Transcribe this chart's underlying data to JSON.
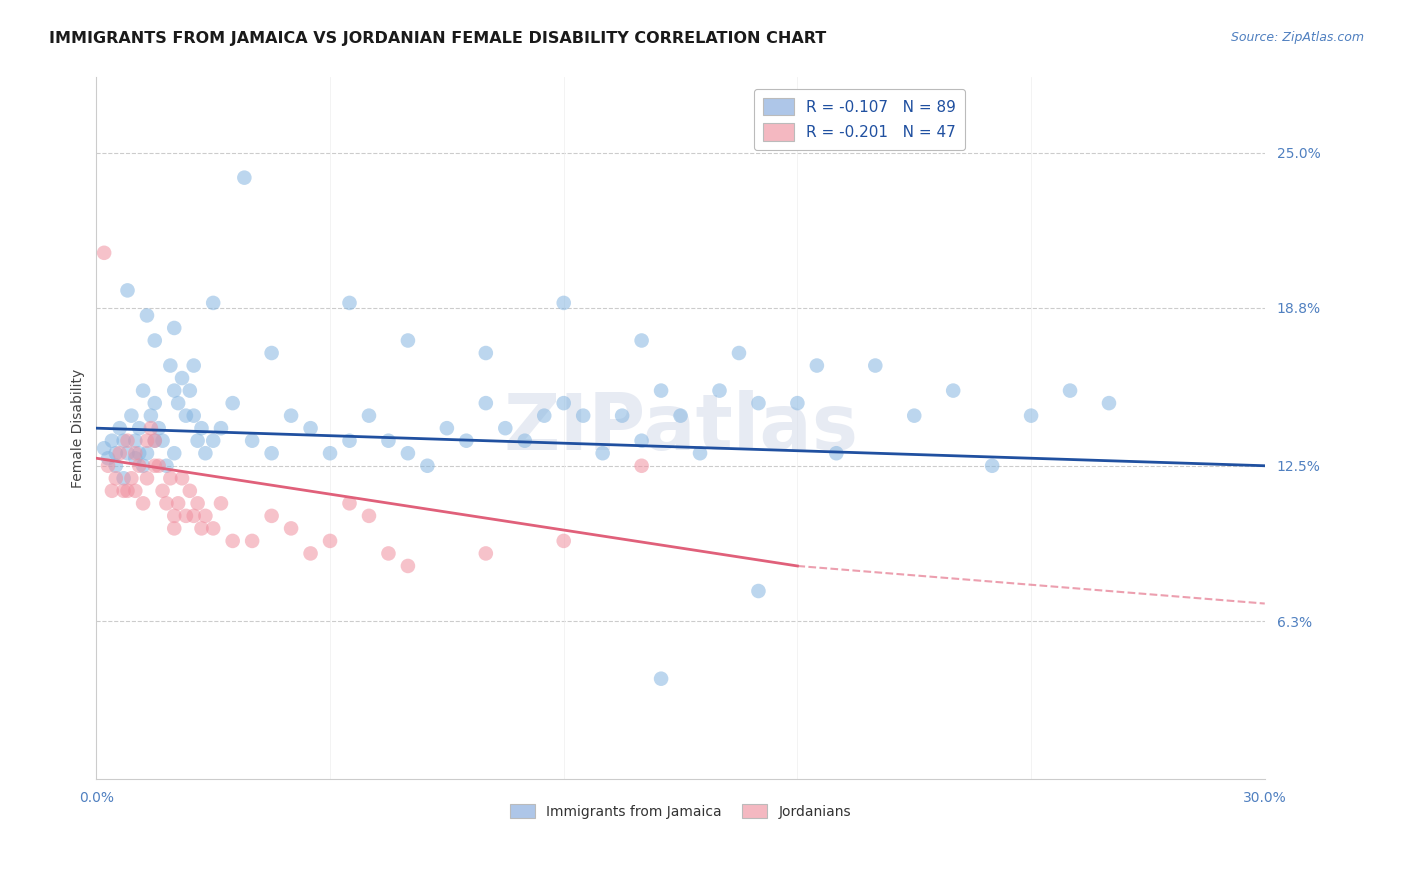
{
  "title": "IMMIGRANTS FROM JAMAICA VS JORDANIAN FEMALE DISABILITY CORRELATION CHART",
  "source": "Source: ZipAtlas.com",
  "ylabel": "Female Disability",
  "right_yticks": [
    6.3,
    12.5,
    18.8,
    25.0
  ],
  "right_yticklabels": [
    "6.3%",
    "12.5%",
    "18.8%",
    "25.0%"
  ],
  "xmin": 0.0,
  "xmax": 30.0,
  "ymin": 0.0,
  "ymax": 28.0,
  "legend1_label": "R = -0.107   N = 89",
  "legend2_label": "R = -0.201   N = 47",
  "legend1_color": "#aec6e8",
  "legend2_color": "#f4b8c1",
  "series1_color": "#85b5e0",
  "series2_color": "#f090a0",
  "trendline1_color": "#2050a0",
  "trendline2_color": "#e0607a",
  "watermark": "ZIPatlas",
  "series1_name": "Immigrants from Jamaica",
  "series2_name": "Jordanians",
  "blue_x": [
    0.2,
    0.3,
    0.4,
    0.5,
    0.5,
    0.6,
    0.7,
    0.7,
    0.8,
    0.9,
    1.0,
    1.0,
    1.1,
    1.1,
    1.2,
    1.2,
    1.3,
    1.4,
    1.5,
    1.5,
    1.6,
    1.7,
    1.8,
    1.9,
    2.0,
    2.0,
    2.1,
    2.2,
    2.3,
    2.4,
    2.5,
    2.6,
    2.7,
    2.8,
    3.0,
    3.2,
    3.5,
    4.0,
    4.5,
    5.0,
    5.5,
    6.0,
    6.5,
    7.0,
    7.5,
    8.0,
    8.5,
    9.0,
    9.5,
    10.0,
    10.5,
    11.0,
    11.5,
    12.0,
    12.5,
    13.0,
    13.5,
    14.0,
    14.5,
    15.0,
    15.5,
    16.0,
    17.0,
    18.0,
    19.0,
    20.0,
    21.0,
    22.0,
    23.0,
    24.0,
    25.0,
    26.0,
    3.8,
    14.5,
    17.0,
    0.8,
    1.3,
    1.5,
    2.0,
    2.5,
    3.0,
    4.5,
    6.5,
    8.0,
    10.0,
    12.0,
    14.0,
    16.5,
    18.5
  ],
  "blue_y": [
    13.2,
    12.8,
    13.5,
    13.0,
    12.5,
    14.0,
    13.5,
    12.0,
    13.0,
    14.5,
    13.5,
    12.8,
    14.0,
    13.0,
    12.5,
    15.5,
    13.0,
    14.5,
    15.0,
    13.5,
    14.0,
    13.5,
    12.5,
    16.5,
    15.5,
    13.0,
    15.0,
    16.0,
    14.5,
    15.5,
    14.5,
    13.5,
    14.0,
    13.0,
    13.5,
    14.0,
    15.0,
    13.5,
    13.0,
    14.5,
    14.0,
    13.0,
    13.5,
    14.5,
    13.5,
    13.0,
    12.5,
    14.0,
    13.5,
    15.0,
    14.0,
    13.5,
    14.5,
    15.0,
    14.5,
    13.0,
    14.5,
    13.5,
    15.5,
    14.5,
    13.0,
    15.5,
    15.0,
    15.0,
    13.0,
    16.5,
    14.5,
    15.5,
    12.5,
    14.5,
    15.5,
    15.0,
    24.0,
    4.0,
    7.5,
    19.5,
    18.5,
    17.5,
    18.0,
    16.5,
    19.0,
    17.0,
    19.0,
    17.5,
    17.0,
    19.0,
    17.5,
    17.0,
    16.5
  ],
  "pink_x": [
    0.2,
    0.3,
    0.4,
    0.5,
    0.6,
    0.7,
    0.8,
    0.9,
    1.0,
    1.0,
    1.1,
    1.2,
    1.3,
    1.3,
    1.4,
    1.5,
    1.6,
    1.7,
    1.8,
    1.9,
    2.0,
    2.1,
    2.2,
    2.3,
    2.4,
    2.5,
    2.6,
    2.7,
    2.8,
    3.0,
    3.2,
    3.5,
    4.0,
    4.5,
    5.0,
    5.5,
    6.0,
    6.5,
    7.0,
    7.5,
    8.0,
    10.0,
    12.0,
    14.0,
    0.8,
    1.5,
    2.0
  ],
  "pink_y": [
    21.0,
    12.5,
    11.5,
    12.0,
    13.0,
    11.5,
    13.5,
    12.0,
    11.5,
    13.0,
    12.5,
    11.0,
    13.5,
    12.0,
    14.0,
    13.5,
    12.5,
    11.5,
    11.0,
    12.0,
    10.5,
    11.0,
    12.0,
    10.5,
    11.5,
    10.5,
    11.0,
    10.0,
    10.5,
    10.0,
    11.0,
    9.5,
    9.5,
    10.5,
    10.0,
    9.0,
    9.5,
    11.0,
    10.5,
    9.0,
    8.5,
    9.0,
    9.5,
    12.5,
    11.5,
    12.5,
    10.0
  ],
  "blue_trendline_x0": 0.0,
  "blue_trendline_x1": 30.0,
  "blue_trendline_y0": 14.0,
  "blue_trendline_y1": 12.5,
  "pink_trendline_x0": 0.0,
  "pink_trendline_xsolid": 18.0,
  "pink_trendline_x1": 30.0,
  "pink_trendline_y0": 12.8,
  "pink_trendline_ysolid": 8.5,
  "pink_trendline_y1": 7.0
}
